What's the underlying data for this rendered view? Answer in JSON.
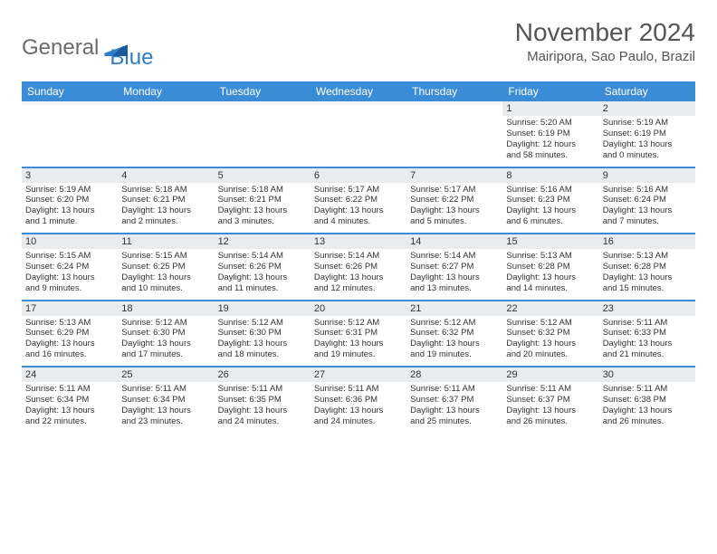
{
  "logo": {
    "word1": "General",
    "word2": "Blue"
  },
  "title": "November 2024",
  "location": "Mairipora, Sao Paulo, Brazil",
  "colors": {
    "header_bg": "#3b8cd6",
    "header_fg": "#ffffff",
    "daynum_bg": "#e9ecef",
    "row_divider": "#3b8cd6",
    "text": "#333333",
    "logo_gray": "#6b6b6b",
    "logo_blue": "#2d7dc9"
  },
  "font": {
    "family": "Arial",
    "title_size_pt": 21,
    "location_size_pt": 11,
    "header_size_pt": 9,
    "body_size_pt": 7
  },
  "weekdays": [
    "Sunday",
    "Monday",
    "Tuesday",
    "Wednesday",
    "Thursday",
    "Friday",
    "Saturday"
  ],
  "weeks": [
    [
      {
        "n": "",
        "lines": [
          "",
          "",
          "",
          ""
        ]
      },
      {
        "n": "",
        "lines": [
          "",
          "",
          "",
          ""
        ]
      },
      {
        "n": "",
        "lines": [
          "",
          "",
          "",
          ""
        ]
      },
      {
        "n": "",
        "lines": [
          "",
          "",
          "",
          ""
        ]
      },
      {
        "n": "",
        "lines": [
          "",
          "",
          "",
          ""
        ]
      },
      {
        "n": "1",
        "lines": [
          "Sunrise: 5:20 AM",
          "Sunset: 6:19 PM",
          "Daylight: 12 hours",
          "and 58 minutes."
        ]
      },
      {
        "n": "2",
        "lines": [
          "Sunrise: 5:19 AM",
          "Sunset: 6:19 PM",
          "Daylight: 13 hours",
          "and 0 minutes."
        ]
      }
    ],
    [
      {
        "n": "3",
        "lines": [
          "Sunrise: 5:19 AM",
          "Sunset: 6:20 PM",
          "Daylight: 13 hours",
          "and 1 minute."
        ]
      },
      {
        "n": "4",
        "lines": [
          "Sunrise: 5:18 AM",
          "Sunset: 6:21 PM",
          "Daylight: 13 hours",
          "and 2 minutes."
        ]
      },
      {
        "n": "5",
        "lines": [
          "Sunrise: 5:18 AM",
          "Sunset: 6:21 PM",
          "Daylight: 13 hours",
          "and 3 minutes."
        ]
      },
      {
        "n": "6",
        "lines": [
          "Sunrise: 5:17 AM",
          "Sunset: 6:22 PM",
          "Daylight: 13 hours",
          "and 4 minutes."
        ]
      },
      {
        "n": "7",
        "lines": [
          "Sunrise: 5:17 AM",
          "Sunset: 6:22 PM",
          "Daylight: 13 hours",
          "and 5 minutes."
        ]
      },
      {
        "n": "8",
        "lines": [
          "Sunrise: 5:16 AM",
          "Sunset: 6:23 PM",
          "Daylight: 13 hours",
          "and 6 minutes."
        ]
      },
      {
        "n": "9",
        "lines": [
          "Sunrise: 5:16 AM",
          "Sunset: 6:24 PM",
          "Daylight: 13 hours",
          "and 7 minutes."
        ]
      }
    ],
    [
      {
        "n": "10",
        "lines": [
          "Sunrise: 5:15 AM",
          "Sunset: 6:24 PM",
          "Daylight: 13 hours",
          "and 9 minutes."
        ]
      },
      {
        "n": "11",
        "lines": [
          "Sunrise: 5:15 AM",
          "Sunset: 6:25 PM",
          "Daylight: 13 hours",
          "and 10 minutes."
        ]
      },
      {
        "n": "12",
        "lines": [
          "Sunrise: 5:14 AM",
          "Sunset: 6:26 PM",
          "Daylight: 13 hours",
          "and 11 minutes."
        ]
      },
      {
        "n": "13",
        "lines": [
          "Sunrise: 5:14 AM",
          "Sunset: 6:26 PM",
          "Daylight: 13 hours",
          "and 12 minutes."
        ]
      },
      {
        "n": "14",
        "lines": [
          "Sunrise: 5:14 AM",
          "Sunset: 6:27 PM",
          "Daylight: 13 hours",
          "and 13 minutes."
        ]
      },
      {
        "n": "15",
        "lines": [
          "Sunrise: 5:13 AM",
          "Sunset: 6:28 PM",
          "Daylight: 13 hours",
          "and 14 minutes."
        ]
      },
      {
        "n": "16",
        "lines": [
          "Sunrise: 5:13 AM",
          "Sunset: 6:28 PM",
          "Daylight: 13 hours",
          "and 15 minutes."
        ]
      }
    ],
    [
      {
        "n": "17",
        "lines": [
          "Sunrise: 5:13 AM",
          "Sunset: 6:29 PM",
          "Daylight: 13 hours",
          "and 16 minutes."
        ]
      },
      {
        "n": "18",
        "lines": [
          "Sunrise: 5:12 AM",
          "Sunset: 6:30 PM",
          "Daylight: 13 hours",
          "and 17 minutes."
        ]
      },
      {
        "n": "19",
        "lines": [
          "Sunrise: 5:12 AM",
          "Sunset: 6:30 PM",
          "Daylight: 13 hours",
          "and 18 minutes."
        ]
      },
      {
        "n": "20",
        "lines": [
          "Sunrise: 5:12 AM",
          "Sunset: 6:31 PM",
          "Daylight: 13 hours",
          "and 19 minutes."
        ]
      },
      {
        "n": "21",
        "lines": [
          "Sunrise: 5:12 AM",
          "Sunset: 6:32 PM",
          "Daylight: 13 hours",
          "and 19 minutes."
        ]
      },
      {
        "n": "22",
        "lines": [
          "Sunrise: 5:12 AM",
          "Sunset: 6:32 PM",
          "Daylight: 13 hours",
          "and 20 minutes."
        ]
      },
      {
        "n": "23",
        "lines": [
          "Sunrise: 5:11 AM",
          "Sunset: 6:33 PM",
          "Daylight: 13 hours",
          "and 21 minutes."
        ]
      }
    ],
    [
      {
        "n": "24",
        "lines": [
          "Sunrise: 5:11 AM",
          "Sunset: 6:34 PM",
          "Daylight: 13 hours",
          "and 22 minutes."
        ]
      },
      {
        "n": "25",
        "lines": [
          "Sunrise: 5:11 AM",
          "Sunset: 6:34 PM",
          "Daylight: 13 hours",
          "and 23 minutes."
        ]
      },
      {
        "n": "26",
        "lines": [
          "Sunrise: 5:11 AM",
          "Sunset: 6:35 PM",
          "Daylight: 13 hours",
          "and 24 minutes."
        ]
      },
      {
        "n": "27",
        "lines": [
          "Sunrise: 5:11 AM",
          "Sunset: 6:36 PM",
          "Daylight: 13 hours",
          "and 24 minutes."
        ]
      },
      {
        "n": "28",
        "lines": [
          "Sunrise: 5:11 AM",
          "Sunset: 6:37 PM",
          "Daylight: 13 hours",
          "and 25 minutes."
        ]
      },
      {
        "n": "29",
        "lines": [
          "Sunrise: 5:11 AM",
          "Sunset: 6:37 PM",
          "Daylight: 13 hours",
          "and 26 minutes."
        ]
      },
      {
        "n": "30",
        "lines": [
          "Sunrise: 5:11 AM",
          "Sunset: 6:38 PM",
          "Daylight: 13 hours",
          "and 26 minutes."
        ]
      }
    ]
  ]
}
